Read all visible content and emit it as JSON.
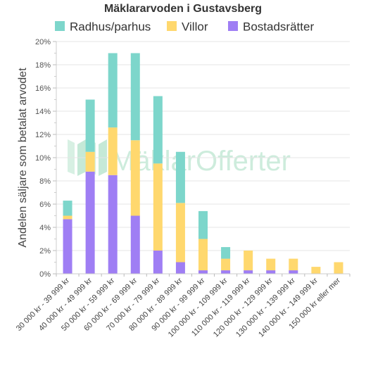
{
  "watermark": {
    "text_prefix": "M",
    "text_mid": "klar",
    "text_suffix": "Offerter",
    "color": "#c8ead9"
  },
  "chart_data": {
    "type": "bar",
    "stacked": true,
    "title": "Mäklararvoden i Gustavsberg",
    "ylabel": "Andelen säljare som betalat arvodet",
    "xlabel": "",
    "ylim": [
      0,
      20
    ],
    "yticks": [
      "0%",
      "2%",
      "4%",
      "6%",
      "8%",
      "10%",
      "12%",
      "14%",
      "16%",
      "18%",
      "20%"
    ],
    "grid": true,
    "legend_position": "top",
    "categories": [
      "30 000 kr - 39 999 kr",
      "40 000 kr - 49 999 kr",
      "50 000 kr - 59 999 kr",
      "60 000 kr - 69 999 kr",
      "70 000 kr - 79 999 kr",
      "80 000 kr - 89 999 kr",
      "90 000 kr - 99 999 kr",
      "100 000 kr - 109 999 kr",
      "110 000 kr - 119 999 kr",
      "120 000 kr - 129 999 kr",
      "130 000 kr - 139 999 kr",
      "140 000 kr - 149 999 kr",
      "150 000 kr eller mer"
    ],
    "series": [
      {
        "name": "Bostadsrätter",
        "color": "#9f7ef4",
        "values": [
          4.7,
          8.8,
          8.5,
          5.0,
          2.0,
          1.0,
          0.3,
          0.3,
          0.3,
          0.3,
          0.3,
          0.0,
          0.0
        ]
      },
      {
        "name": "Villor",
        "color": "#ffd86e",
        "values": [
          0.3,
          1.7,
          4.1,
          6.5,
          7.5,
          5.1,
          2.7,
          1.0,
          1.7,
          1.0,
          1.0,
          0.6,
          1.0
        ]
      },
      {
        "name": "Radhus/parhus",
        "color": "#7dd6cb",
        "values": [
          1.3,
          4.5,
          6.4,
          7.5,
          5.8,
          4.4,
          2.4,
          1.0,
          0.0,
          0.0,
          0.0,
          0.0,
          0.0
        ]
      }
    ],
    "legend_order": [
      "Radhus/parhus",
      "Villor",
      "Bostadsrätter"
    ]
  }
}
